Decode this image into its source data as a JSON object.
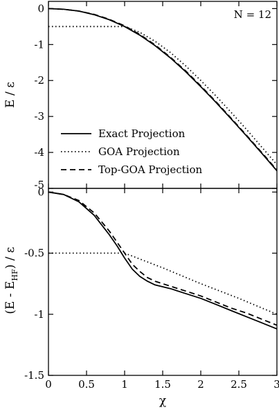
{
  "chart_data": [
    {
      "type": "line",
      "ylabel": "E / ε",
      "xlim": [
        0,
        3
      ],
      "ylim": [
        -5,
        0.2
      ],
      "yticks": [
        0,
        -1,
        -2,
        -3,
        -4,
        -5
      ],
      "annotation": "N = 12",
      "legend_position": "bottom-left",
      "grid": false,
      "series": [
        {
          "name": "Exact Projection",
          "style": "solid",
          "x": [
            0,
            0.2,
            0.4,
            0.6,
            0.8,
            1.0,
            1.2,
            1.4,
            1.6,
            1.8,
            2.0,
            2.2,
            2.4,
            2.6,
            2.8,
            3.0
          ],
          "y": [
            0,
            -0.02,
            -0.07,
            -0.17,
            -0.31,
            -0.5,
            -0.74,
            -1.03,
            -1.37,
            -1.75,
            -2.17,
            -2.61,
            -3.07,
            -3.54,
            -4.02,
            -4.51
          ]
        },
        {
          "name": "GOA Projection",
          "style": "dotted",
          "x": [
            0,
            0.2,
            0.4,
            0.6,
            0.8,
            0.95,
            1.0,
            1.2,
            1.4,
            1.6,
            1.8,
            2.0,
            2.2,
            2.4,
            2.6,
            2.8,
            3.0
          ],
          "y": [
            -0.5,
            -0.5,
            -0.5,
            -0.5,
            -0.5,
            -0.5,
            -0.5,
            -0.66,
            -0.91,
            -1.22,
            -1.59,
            -2.0,
            -2.43,
            -2.89,
            -3.36,
            -3.85,
            -4.34
          ]
        },
        {
          "name": "Top-GOA Projection",
          "style": "dashed",
          "x": [
            0,
            0.2,
            0.4,
            0.6,
            0.8,
            1.0,
            1.2,
            1.4,
            1.6,
            1.8,
            2.0,
            2.2,
            2.4,
            2.6,
            2.8,
            3.0
          ],
          "y": [
            0,
            -0.02,
            -0.07,
            -0.16,
            -0.3,
            -0.48,
            -0.72,
            -1.01,
            -1.35,
            -1.73,
            -2.15,
            -2.59,
            -3.05,
            -3.52,
            -4.0,
            -4.49
          ]
        }
      ]
    },
    {
      "type": "line",
      "xlabel": "χ",
      "ylabel": "(E - E_HF) / ε",
      "ylabel_main": "(E - E",
      "ylabel_sub": "HF",
      "ylabel_tail": ") / ε",
      "xlim": [
        0,
        3
      ],
      "ylim": [
        -1.5,
        0.03
      ],
      "xticks": [
        0,
        0.5,
        1,
        1.5,
        2,
        2.5,
        3
      ],
      "xtick_labels": [
        "0",
        "0.5",
        "1",
        "1.5",
        "2",
        "2.5",
        "3"
      ],
      "yticks": [
        0,
        -0.5,
        -1,
        -1.5
      ],
      "ytick_labels": [
        "0",
        "-0.5",
        "-1",
        "-1.5"
      ],
      "grid": false,
      "series": [
        {
          "name": "Exact Projection",
          "style": "solid",
          "x": [
            0,
            0.2,
            0.4,
            0.6,
            0.8,
            0.9,
            1.0,
            1.1,
            1.2,
            1.3,
            1.4,
            1.6,
            1.8,
            2.0,
            2.2,
            2.4,
            2.6,
            2.8,
            3.0
          ],
          "y": [
            0,
            -0.02,
            -0.08,
            -0.19,
            -0.35,
            -0.44,
            -0.54,
            -0.63,
            -0.69,
            -0.73,
            -0.76,
            -0.79,
            -0.83,
            -0.87,
            -0.92,
            -0.97,
            -1.02,
            -1.07,
            -1.12
          ]
        },
        {
          "name": "GOA Projection",
          "style": "dotted",
          "x": [
            0,
            0.5,
            0.95,
            1.0,
            1.5,
            2.0,
            2.5,
            3.0
          ],
          "y": [
            -0.5,
            -0.5,
            -0.5,
            -0.5,
            -0.62,
            -0.75,
            -0.87,
            -1.0
          ]
        },
        {
          "name": "Top-GOA Projection",
          "style": "dashed",
          "x": [
            0,
            0.2,
            0.4,
            0.6,
            0.8,
            0.9,
            1.0,
            1.1,
            1.2,
            1.3,
            1.4,
            1.6,
            1.8,
            2.0,
            2.2,
            2.4,
            2.6,
            2.8,
            3.0
          ],
          "y": [
            0,
            -0.02,
            -0.07,
            -0.17,
            -0.32,
            -0.41,
            -0.5,
            -0.59,
            -0.65,
            -0.7,
            -0.73,
            -0.77,
            -0.81,
            -0.85,
            -0.9,
            -0.95,
            -0.99,
            -1.04,
            -1.09
          ]
        }
      ]
    }
  ]
}
